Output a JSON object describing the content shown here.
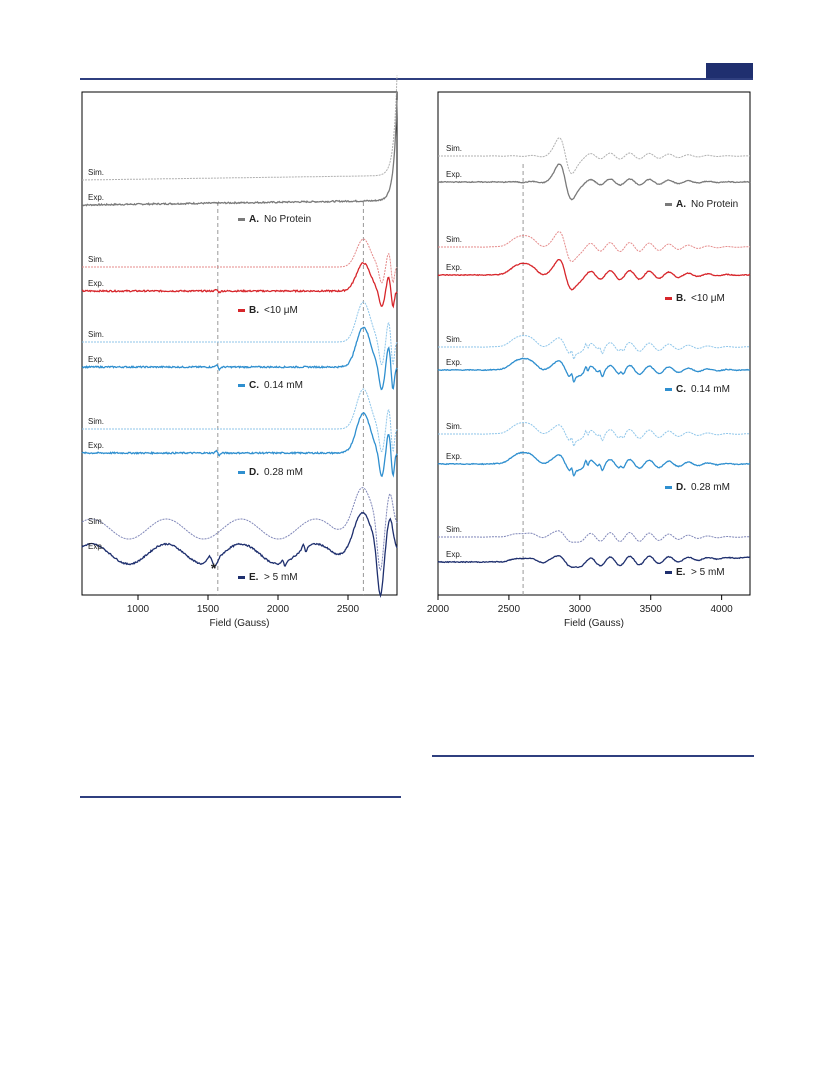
{
  "colors": {
    "header": "#2f3f7f",
    "A": "#7a7a7a",
    "A_sim": "#b0b0b0",
    "B": "#d7262b",
    "B_sim": "#e58b8b",
    "C": "#2f8fcf",
    "C_sim": "#8fc6ea",
    "D": "#2f8fcf",
    "D_sim": "#8fc6ea",
    "E": "#1e2f6e",
    "E_sim": "#7f86b8"
  },
  "chart_data": [
    {
      "type": "line",
      "xlabel": "Field (Gauss)",
      "xlim": [
        600,
        2850
      ],
      "xticks": [
        1000,
        1500,
        2000,
        2500
      ],
      "ylabel": "",
      "grid": false,
      "legend": "stacked labels beside traces",
      "reference_lines_x": [
        1570,
        2610
      ],
      "annotation": "*",
      "trace_labels": {
        "sim": "Sim.",
        "exp": "Exp."
      },
      "series": [
        {
          "key": "A",
          "label": "A.",
          "desc": "No Protein"
        },
        {
          "key": "B",
          "label": "B.",
          "desc": "<10 μM"
        },
        {
          "key": "C",
          "label": "C.",
          "desc": "0.14 mM"
        },
        {
          "key": "D",
          "label": "D.",
          "desc": "0.28 mM"
        },
        {
          "key": "E",
          "label": "E.",
          "desc": "> 5 mM"
        }
      ]
    },
    {
      "type": "line",
      "xlabel": "Field (Gauss)",
      "xlim": [
        2000,
        4200
      ],
      "xticks": [
        2000,
        2500,
        3000,
        3500,
        4000
      ],
      "ylabel": "",
      "grid": false,
      "legend": "stacked labels beside traces",
      "reference_lines_x": [
        2600
      ],
      "trace_labels": {
        "sim": "Sim.",
        "exp": "Exp."
      },
      "series": [
        {
          "key": "A",
          "label": "A.",
          "desc": "No Protein"
        },
        {
          "key": "B",
          "label": "B.",
          "desc": "<10 μM"
        },
        {
          "key": "C",
          "label": "C.",
          "desc": "0.14 mM"
        },
        {
          "key": "D",
          "label": "D.",
          "desc": "0.28 mM"
        },
        {
          "key": "E",
          "label": "E.",
          "desc": "> 5 mM"
        }
      ]
    }
  ]
}
